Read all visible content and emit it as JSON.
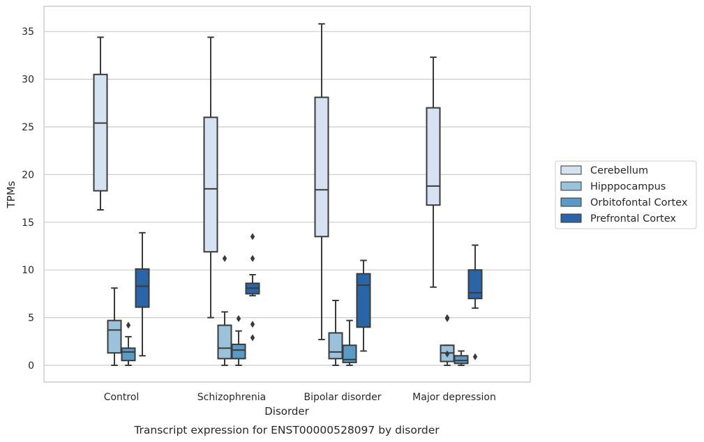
{
  "chart_data": {
    "type": "box",
    "xlabel": "Disorder",
    "ylabel": "TPMs",
    "caption": "Transcript expression for ENST00000528097 by disorder",
    "categories": [
      "Control",
      "Schizophrenia",
      "Bipolar disorder",
      "Major depression"
    ],
    "ylim": [
      -1.7,
      37.7
    ],
    "yticks": [
      0,
      5,
      10,
      15,
      20,
      25,
      30,
      35
    ],
    "grid": "horizontal",
    "legend_position": "right",
    "series": [
      {
        "name": "Cerebellum",
        "color": "#d4e2f1",
        "boxes": [
          {
            "whislo": 16.3,
            "q1": 18.3,
            "med": 25.4,
            "q3": 30.5,
            "whishi": 34.4,
            "fliers": []
          },
          {
            "whislo": 5.0,
            "q1": 11.9,
            "med": 18.5,
            "q3": 26.0,
            "whishi": 34.4,
            "fliers": []
          },
          {
            "whislo": 2.7,
            "q1": 13.5,
            "med": 18.4,
            "q3": 28.1,
            "whishi": 35.8,
            "fliers": []
          },
          {
            "whislo": 8.2,
            "q1": 16.8,
            "med": 18.8,
            "q3": 27.0,
            "whishi": 32.3,
            "fliers": []
          }
        ]
      },
      {
        "name": "Hipppocampus",
        "color": "#9ac2db",
        "boxes": [
          {
            "whislo": 0.0,
            "q1": 1.3,
            "med": 3.7,
            "q3": 4.7,
            "whishi": 8.1,
            "fliers": []
          },
          {
            "whislo": 0.0,
            "q1": 0.7,
            "med": 1.8,
            "q3": 4.2,
            "whishi": 5.6,
            "fliers": [
              11.2
            ]
          },
          {
            "whislo": 0.0,
            "q1": 0.7,
            "med": 1.4,
            "q3": 3.4,
            "whishi": 6.8,
            "fliers": []
          },
          {
            "whislo": 0.0,
            "q1": 0.4,
            "med": 1.3,
            "q3": 2.1,
            "whishi": 2.1,
            "fliers": [
              1.2,
              4.9,
              5.0
            ]
          }
        ]
      },
      {
        "name": "Orbitofontal Cortex",
        "color": "#5a9ac6",
        "boxes": [
          {
            "whislo": 0.0,
            "q1": 0.5,
            "med": 1.4,
            "q3": 1.8,
            "whishi": 3.0,
            "fliers": [
              4.2
            ]
          },
          {
            "whislo": 0.0,
            "q1": 0.7,
            "med": 1.6,
            "q3": 2.2,
            "whishi": 3.6,
            "fliers": [
              4.9
            ]
          },
          {
            "whislo": 0.0,
            "q1": 0.3,
            "med": 0.6,
            "q3": 2.1,
            "whishi": 4.7,
            "fliers": []
          },
          {
            "whislo": 0.0,
            "q1": 0.2,
            "med": 0.5,
            "q3": 1.0,
            "whishi": 1.5,
            "fliers": []
          }
        ]
      },
      {
        "name": "Prefrontal Cortex",
        "color": "#2a66a7",
        "boxes": [
          {
            "whislo": 1.0,
            "q1": 6.1,
            "med": 8.3,
            "q3": 10.1,
            "whishi": 13.9,
            "fliers": []
          },
          {
            "whislo": 7.3,
            "q1": 7.5,
            "med": 8.1,
            "q3": 8.6,
            "whishi": 9.5,
            "fliers": [
              2.9,
              4.3,
              11.2,
              13.5
            ]
          },
          {
            "whislo": 1.5,
            "q1": 4.0,
            "med": 8.4,
            "q3": 9.6,
            "whishi": 11.0,
            "fliers": []
          },
          {
            "whislo": 6.0,
            "q1": 7.0,
            "med": 7.6,
            "q3": 10.0,
            "whishi": 12.6,
            "fliers": [
              0.9
            ]
          }
        ]
      }
    ]
  }
}
